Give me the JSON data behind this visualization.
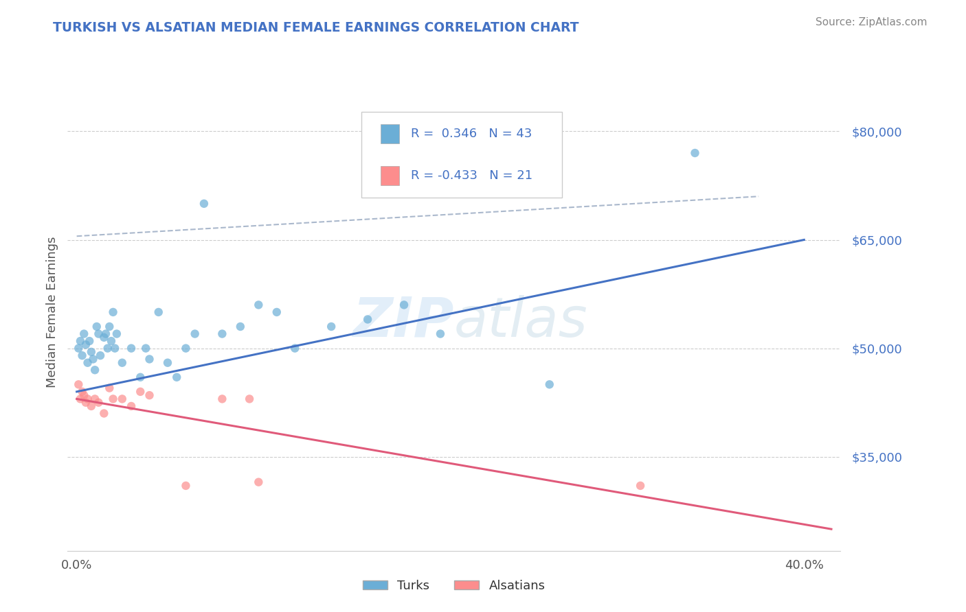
{
  "title": "TURKISH VS ALSATIAN MEDIAN FEMALE EARNINGS CORRELATION CHART",
  "source": "Source: ZipAtlas.com",
  "ylabel": "Median Female Earnings",
  "turks_color": "#6baed6",
  "alsatians_color": "#fc8d8d",
  "turks_line_color": "#4472c4",
  "alsatians_line_color": "#e05a7a",
  "turks_R": 0.346,
  "turks_N": 43,
  "alsatians_R": -0.433,
  "alsatians_N": 21,
  "legend_text_color": "#4472c4",
  "title_color": "#4472c4",
  "turks_points": [
    [
      0.001,
      50000
    ],
    [
      0.002,
      51000
    ],
    [
      0.003,
      49000
    ],
    [
      0.004,
      52000
    ],
    [
      0.005,
      50500
    ],
    [
      0.006,
      48000
    ],
    [
      0.007,
      51000
    ],
    [
      0.008,
      49500
    ],
    [
      0.009,
      48500
    ],
    [
      0.01,
      47000
    ],
    [
      0.011,
      53000
    ],
    [
      0.012,
      52000
    ],
    [
      0.013,
      49000
    ],
    [
      0.015,
      51500
    ],
    [
      0.016,
      52000
    ],
    [
      0.017,
      50000
    ],
    [
      0.018,
      53000
    ],
    [
      0.019,
      51000
    ],
    [
      0.02,
      55000
    ],
    [
      0.021,
      50000
    ],
    [
      0.022,
      52000
    ],
    [
      0.025,
      48000
    ],
    [
      0.03,
      50000
    ],
    [
      0.035,
      46000
    ],
    [
      0.038,
      50000
    ],
    [
      0.04,
      48500
    ],
    [
      0.045,
      55000
    ],
    [
      0.05,
      48000
    ],
    [
      0.055,
      46000
    ],
    [
      0.06,
      50000
    ],
    [
      0.065,
      52000
    ],
    [
      0.07,
      70000
    ],
    [
      0.08,
      52000
    ],
    [
      0.09,
      53000
    ],
    [
      0.1,
      56000
    ],
    [
      0.11,
      55000
    ],
    [
      0.12,
      50000
    ],
    [
      0.14,
      53000
    ],
    [
      0.16,
      54000
    ],
    [
      0.18,
      56000
    ],
    [
      0.2,
      52000
    ],
    [
      0.26,
      45000
    ],
    [
      0.34,
      77000
    ]
  ],
  "alsatians_points": [
    [
      0.001,
      45000
    ],
    [
      0.002,
      43000
    ],
    [
      0.003,
      44000
    ],
    [
      0.004,
      43500
    ],
    [
      0.005,
      42500
    ],
    [
      0.006,
      43000
    ],
    [
      0.008,
      42000
    ],
    [
      0.01,
      43000
    ],
    [
      0.012,
      42500
    ],
    [
      0.015,
      41000
    ],
    [
      0.018,
      44500
    ],
    [
      0.02,
      43000
    ],
    [
      0.025,
      43000
    ],
    [
      0.03,
      42000
    ],
    [
      0.035,
      44000
    ],
    [
      0.04,
      43500
    ],
    [
      0.06,
      31000
    ],
    [
      0.08,
      43000
    ],
    [
      0.095,
      43000
    ],
    [
      0.1,
      31500
    ],
    [
      0.31,
      31000
    ]
  ],
  "turks_line_x": [
    0.0,
    0.4
  ],
  "turks_line_y": [
    44000,
    65000
  ],
  "alsatians_line_x": [
    0.0,
    0.415
  ],
  "alsatians_line_y": [
    43000,
    25000
  ],
  "dashed_line_x": [
    0.0,
    0.375
  ],
  "dashed_line_y": [
    65500,
    71000
  ],
  "xlim": [
    -0.005,
    0.42
  ],
  "ylim": [
    22000,
    88000
  ],
  "x_tick_positions": [
    0.0,
    0.05,
    0.1,
    0.15,
    0.2,
    0.25,
    0.3,
    0.35,
    0.4
  ],
  "x_tick_labels": [
    "0.0%",
    "",
    "",
    "",
    "",
    "",
    "",
    "",
    "40.0%"
  ],
  "y_tick_positions": [
    35000,
    50000,
    65000,
    80000
  ],
  "y_tick_labels": [
    "$35,000",
    "$50,000",
    "$65,000",
    "$80,000"
  ],
  "background_color": "#ffffff",
  "grid_color": "#cccccc"
}
